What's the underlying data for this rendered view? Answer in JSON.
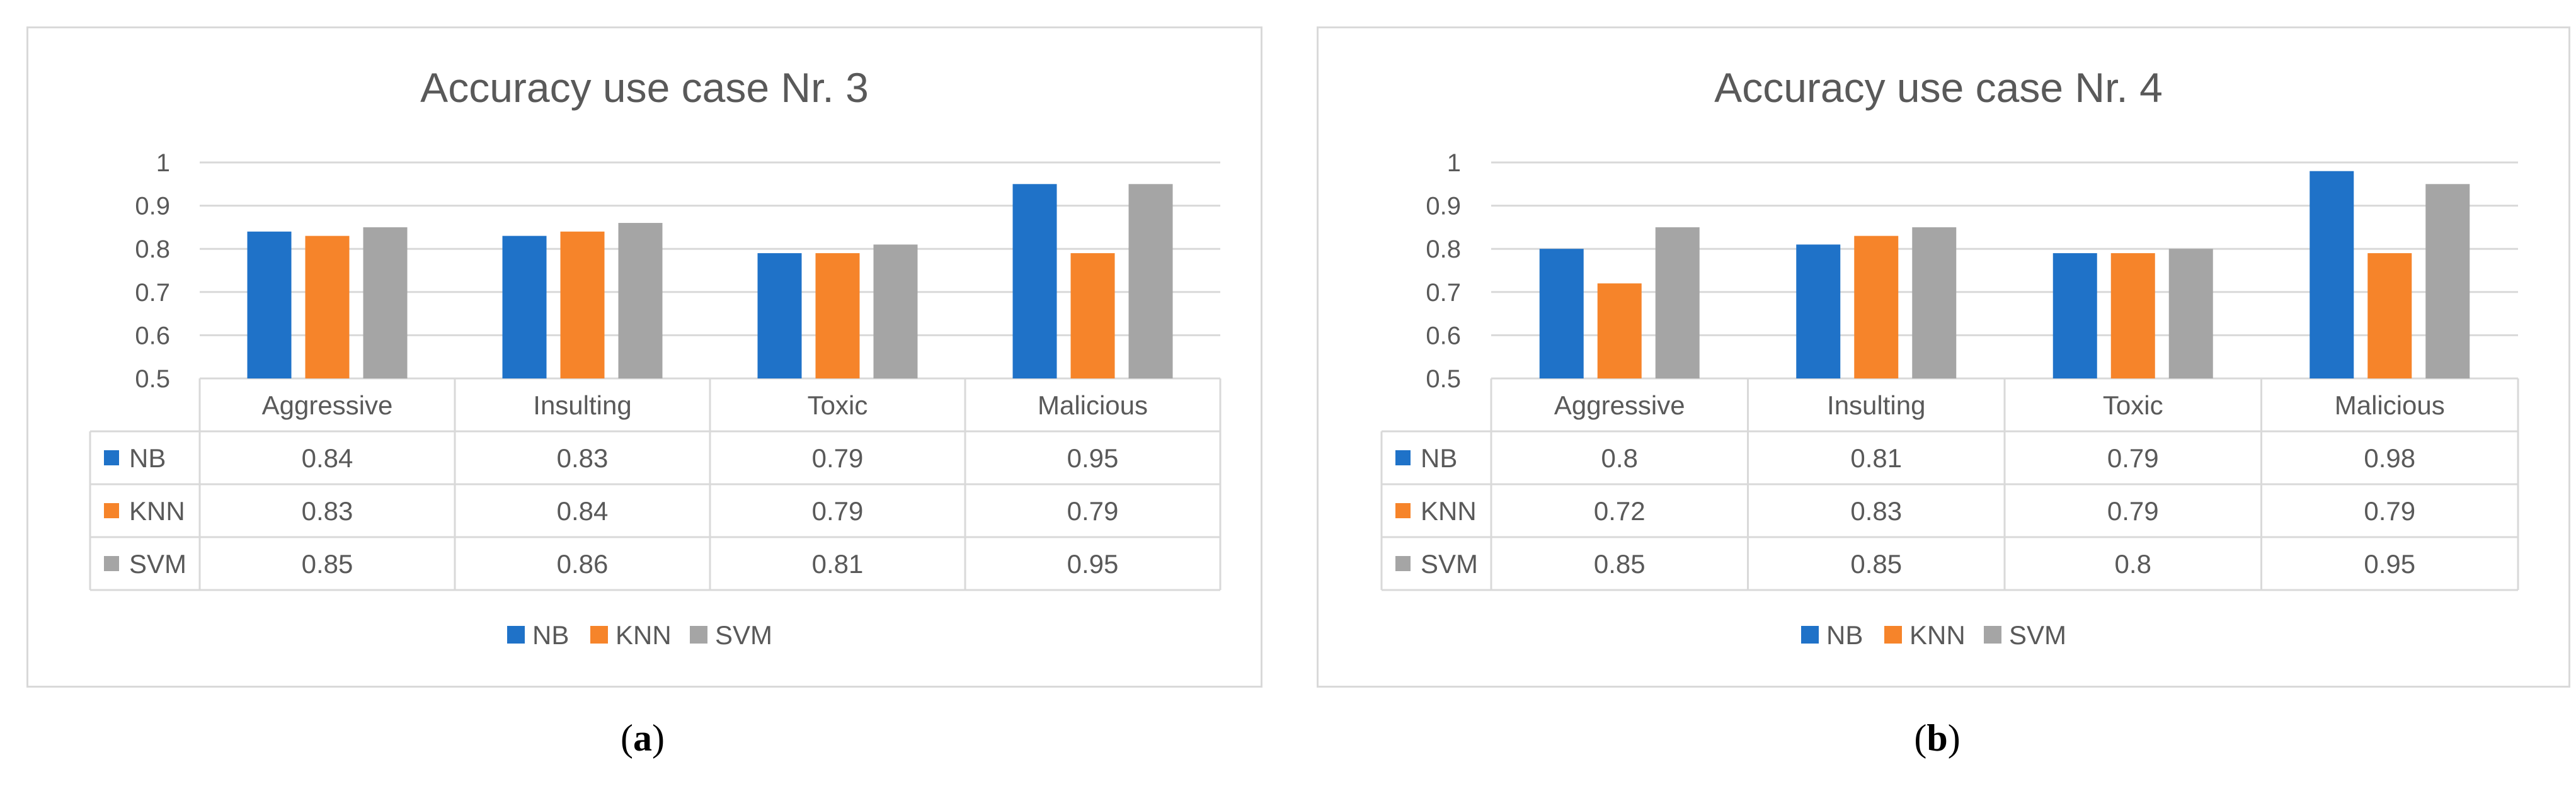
{
  "colors": {
    "NB": "#1f72c8",
    "KNN": "#f6842a",
    "SVM": "#a5a5a5",
    "grid": "#d9d9d9",
    "text": "#595959",
    "frame": "#d9d9d9"
  },
  "panel_labels": [
    {
      "open": "(",
      "letter": "a",
      "close": ")"
    },
    {
      "open": "(",
      "letter": "b",
      "close": ")"
    }
  ],
  "chart_data": [
    {
      "type": "bar",
      "title": "Accuracy use case Nr. 3",
      "categories": [
        "Aggressive",
        "Insulting",
        "Toxic",
        "Malicious"
      ],
      "series": [
        {
          "name": "NB",
          "values": [
            0.84,
            0.83,
            0.79,
            0.95
          ]
        },
        {
          "name": "KNN",
          "values": [
            0.83,
            0.84,
            0.79,
            0.79
          ]
        },
        {
          "name": "SVM",
          "values": [
            0.85,
            0.86,
            0.81,
            0.95
          ]
        }
      ],
      "table_values": [
        [
          "0.84",
          "0.83",
          "0.79",
          "0.95"
        ],
        [
          "0.83",
          "0.84",
          "0.79",
          "0.79"
        ],
        [
          "0.85",
          "0.86",
          "0.81",
          "0.95"
        ]
      ],
      "ylim": [
        0.5,
        1
      ],
      "yticks": [
        "0.5",
        "0.6",
        "0.7",
        "0.8",
        "0.9",
        "1"
      ],
      "grid": true,
      "legend": "bottom",
      "data_table": true
    },
    {
      "type": "bar",
      "title": "Accuracy use case Nr. 4",
      "categories": [
        "Aggressive",
        "Insulting",
        "Toxic",
        "Malicious"
      ],
      "series": [
        {
          "name": "NB",
          "values": [
            0.8,
            0.81,
            0.79,
            0.98
          ]
        },
        {
          "name": "KNN",
          "values": [
            0.72,
            0.83,
            0.79,
            0.79
          ]
        },
        {
          "name": "SVM",
          "values": [
            0.85,
            0.85,
            0.8,
            0.95
          ]
        }
      ],
      "table_values": [
        [
          "0.8",
          "0.81",
          "0.79",
          "0.98"
        ],
        [
          "0.72",
          "0.83",
          "0.79",
          "0.79"
        ],
        [
          "0.85",
          "0.85",
          "0.8",
          "0.95"
        ]
      ],
      "ylim": [
        0.5,
        1
      ],
      "yticks": [
        "0.5",
        "0.6",
        "0.7",
        "0.8",
        "0.9",
        "1"
      ],
      "grid": true,
      "legend": "bottom",
      "data_table": true
    }
  ]
}
